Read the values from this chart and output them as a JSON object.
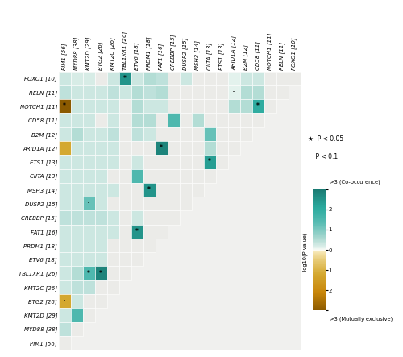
{
  "genes_row": [
    "FOXO1 [10]",
    "RELN [11]",
    "NOTCH1 [11]",
    "CD58 [11]",
    "B2M [12]",
    "ARID1A [12]",
    "ETS1 [13]",
    "CIITA [13]",
    "MSH3 [14]",
    "DUSP2 [15]",
    "CREBBP [15]",
    "FAT1 [16]",
    "PRDM1 [18]",
    "ETV6 [18]",
    "TBL1XR1 [26]",
    "KMT2C [26]",
    "BTG2 [26]",
    "KMT2D [29]",
    "MYD88 [38]",
    "PIM1 [56]"
  ],
  "genes_col": [
    "PIM1 [56]",
    "MYD88 [38]",
    "KMT2D [29]",
    "BTG2 [26]",
    "KMT2C [26]",
    "TBL1XR1 [26]",
    "ETV6 [18]",
    "PRDM1 [18]",
    "FAT1 [16]",
    "CREBBP [15]",
    "DUSP2 [15]",
    "MSH3 [14]",
    "CIITA [13]",
    "ETS1 [13]",
    "ARID1A [12]",
    "B2M [12]",
    "CD58 [11]",
    "NOTCH1 [11]",
    "RELN [11]",
    "FOXO1 [10]"
  ],
  "matrix": [
    [
      0.3,
      0.2,
      0.2,
      0.0,
      0.3,
      2.5,
      0.3,
      0.5,
      0.4,
      0.0,
      0.3,
      0.0,
      0.0,
      0.0,
      0.1,
      0.3,
      0.3,
      0.0,
      0.0,
      0.0
    ],
    [
      0.4,
      0.3,
      0.3,
      0.3,
      0.4,
      0.3,
      0.5,
      0.4,
      0.5,
      0.0,
      0.0,
      0.0,
      0.0,
      0.0,
      0.1,
      0.5,
      0.5,
      0.0,
      0.0,
      0.0
    ],
    [
      -3.5,
      0.3,
      0.3,
      0.3,
      0.3,
      0.0,
      0.5,
      0.3,
      0.3,
      0.0,
      0.0,
      0.0,
      0.0,
      0.0,
      0.5,
      0.5,
      2.0,
      0.0,
      0.0,
      0.0
    ],
    [
      0.3,
      0.3,
      0.3,
      0.0,
      0.3,
      0.0,
      0.5,
      0.5,
      0.0,
      1.5,
      0.0,
      0.5,
      0.0,
      0.0,
      0.0,
      0.0,
      0.0,
      0.0,
      0.0,
      0.0
    ],
    [
      0.3,
      0.5,
      0.3,
      0.3,
      0.4,
      0.0,
      0.4,
      0.3,
      0.0,
      0.0,
      0.0,
      0.0,
      1.2,
      0.0,
      0.0,
      0.0,
      0.0,
      0.0,
      0.0,
      0.0
    ],
    [
      -1.2,
      0.3,
      0.3,
      0.3,
      0.3,
      0.0,
      0.0,
      0.0,
      2.8,
      0.0,
      0.0,
      0.0,
      0.5,
      0.0,
      0.0,
      0.0,
      0.0,
      0.0,
      0.0,
      0.0
    ],
    [
      0.3,
      0.3,
      0.3,
      0.3,
      0.3,
      0.0,
      0.3,
      0.0,
      0.0,
      0.0,
      0.0,
      0.0,
      2.3,
      0.0,
      0.0,
      0.0,
      0.0,
      0.0,
      0.0,
      0.0
    ],
    [
      0.3,
      0.3,
      0.3,
      0.3,
      0.0,
      0.0,
      1.5,
      0.0,
      0.0,
      0.0,
      0.0,
      0.0,
      0.0,
      0.0,
      0.0,
      0.0,
      0.0,
      0.0,
      0.0,
      0.0
    ],
    [
      0.3,
      0.3,
      0.3,
      0.3,
      0.3,
      0.0,
      0.0,
      2.5,
      0.0,
      0.0,
      0.0,
      0.0,
      0.0,
      0.0,
      0.0,
      0.0,
      0.0,
      0.0,
      0.0,
      0.0
    ],
    [
      0.3,
      0.3,
      1.2,
      0.3,
      0.0,
      0.0,
      0.0,
      0.0,
      0.0,
      0.0,
      0.0,
      0.0,
      0.0,
      0.0,
      0.0,
      0.0,
      0.0,
      0.0,
      0.0,
      0.0
    ],
    [
      0.4,
      0.4,
      0.4,
      0.4,
      0.3,
      0.0,
      0.3,
      0.0,
      0.0,
      0.0,
      0.0,
      0.0,
      0.0,
      0.0,
      0.0,
      0.0,
      0.0,
      0.0,
      0.0,
      0.0
    ],
    [
      0.3,
      0.3,
      0.3,
      0.3,
      0.3,
      0.0,
      2.5,
      0.0,
      0.0,
      0.0,
      0.0,
      0.0,
      0.0,
      0.0,
      0.0,
      0.0,
      0.0,
      0.0,
      0.0,
      0.0
    ],
    [
      0.3,
      0.3,
      0.3,
      0.3,
      0.0,
      0.0,
      0.0,
      0.0,
      0.0,
      0.0,
      0.0,
      0.0,
      0.0,
      0.0,
      0.0,
      0.0,
      0.0,
      0.0,
      0.0,
      0.0
    ],
    [
      0.3,
      0.3,
      0.3,
      0.3,
      0.0,
      0.0,
      0.0,
      0.0,
      0.0,
      0.0,
      0.0,
      0.0,
      0.0,
      0.0,
      0.0,
      0.0,
      0.0,
      0.0,
      0.0,
      0.0
    ],
    [
      0.3,
      0.5,
      1.5,
      2.8,
      0.0,
      0.0,
      0.0,
      0.0,
      0.0,
      0.0,
      0.0,
      0.0,
      0.0,
      0.0,
      0.0,
      0.0,
      0.0,
      0.0,
      0.0,
      0.0
    ],
    [
      0.3,
      0.4,
      0.4,
      0.0,
      0.0,
      0.0,
      0.0,
      0.0,
      0.0,
      0.0,
      0.0,
      0.0,
      0.0,
      0.0,
      0.0,
      0.0,
      0.0,
      0.0,
      0.0,
      0.0
    ],
    [
      -1.2,
      0.3,
      0.0,
      0.0,
      0.0,
      0.0,
      0.0,
      0.0,
      0.0,
      0.0,
      0.0,
      0.0,
      0.0,
      0.0,
      0.0,
      0.0,
      0.0,
      0.0,
      0.0,
      0.0
    ],
    [
      0.3,
      1.5,
      0.0,
      0.0,
      0.0,
      0.0,
      0.0,
      0.0,
      0.0,
      0.0,
      0.0,
      0.0,
      0.0,
      0.0,
      0.0,
      0.0,
      0.0,
      0.0,
      0.0,
      0.0
    ],
    [
      0.4,
      0.0,
      0.0,
      0.0,
      0.0,
      0.0,
      0.0,
      0.0,
      0.0,
      0.0,
      0.0,
      0.0,
      0.0,
      0.0,
      0.0,
      0.0,
      0.0,
      0.0,
      0.0,
      0.0
    ],
    [
      0.0,
      0.0,
      0.0,
      0.0,
      0.0,
      0.0,
      0.0,
      0.0,
      0.0,
      0.0,
      0.0,
      0.0,
      0.0,
      0.0,
      0.0,
      0.0,
      0.0,
      0.0,
      0.0,
      0.0
    ]
  ],
  "significance": [
    [
      0,
      0,
      0,
      0,
      0,
      1,
      0,
      0,
      0,
      0,
      0,
      0,
      0,
      0,
      0,
      0,
      0,
      0,
      0,
      0
    ],
    [
      0,
      0,
      0,
      0,
      0,
      0,
      0,
      0,
      0,
      0,
      0,
      0,
      0,
      0,
      2,
      0,
      0,
      0,
      0,
      0
    ],
    [
      1,
      0,
      0,
      0,
      0,
      0,
      0,
      0,
      0,
      0,
      0,
      0,
      0,
      0,
      0,
      0,
      1,
      0,
      0,
      0
    ],
    [
      0,
      0,
      0,
      0,
      0,
      0,
      0,
      0,
      0,
      0,
      0,
      0,
      0,
      0,
      0,
      0,
      0,
      0,
      0,
      0
    ],
    [
      0,
      0,
      0,
      0,
      0,
      0,
      0,
      0,
      0,
      0,
      0,
      0,
      0,
      0,
      0,
      0,
      0,
      0,
      0,
      0
    ],
    [
      2,
      0,
      0,
      0,
      0,
      0,
      0,
      0,
      1,
      0,
      0,
      0,
      0,
      0,
      0,
      0,
      0,
      0,
      0,
      0
    ],
    [
      0,
      0,
      0,
      0,
      0,
      0,
      0,
      0,
      0,
      0,
      0,
      0,
      1,
      0,
      0,
      0,
      0,
      0,
      0,
      0
    ],
    [
      0,
      0,
      0,
      0,
      0,
      0,
      0,
      0,
      0,
      0,
      0,
      0,
      0,
      0,
      0,
      0,
      0,
      0,
      0,
      0
    ],
    [
      0,
      0,
      0,
      0,
      0,
      0,
      0,
      1,
      0,
      0,
      0,
      0,
      0,
      0,
      0,
      0,
      0,
      0,
      0,
      0
    ],
    [
      0,
      0,
      2,
      0,
      0,
      0,
      0,
      0,
      0,
      0,
      0,
      0,
      0,
      0,
      0,
      0,
      0,
      0,
      0,
      0
    ],
    [
      0,
      0,
      0,
      0,
      0,
      0,
      0,
      0,
      0,
      0,
      0,
      0,
      0,
      0,
      0,
      0,
      0,
      0,
      0,
      0
    ],
    [
      0,
      0,
      0,
      0,
      0,
      0,
      1,
      0,
      0,
      0,
      0,
      0,
      0,
      0,
      0,
      0,
      0,
      0,
      0,
      0
    ],
    [
      0,
      0,
      0,
      0,
      0,
      0,
      0,
      0,
      0,
      0,
      0,
      0,
      0,
      0,
      0,
      0,
      0,
      0,
      0,
      0
    ],
    [
      0,
      0,
      0,
      0,
      0,
      0,
      0,
      0,
      0,
      0,
      0,
      0,
      0,
      0,
      0,
      0,
      0,
      0,
      0,
      0
    ],
    [
      0,
      0,
      1,
      1,
      0,
      0,
      0,
      0,
      0,
      0,
      0,
      0,
      0,
      0,
      0,
      0,
      0,
      0,
      0,
      0
    ],
    [
      0,
      0,
      0,
      0,
      0,
      0,
      0,
      0,
      0,
      0,
      0,
      0,
      0,
      0,
      0,
      0,
      0,
      0,
      0,
      0
    ],
    [
      2,
      0,
      0,
      0,
      0,
      0,
      0,
      0,
      0,
      0,
      0,
      0,
      0,
      0,
      0,
      0,
      0,
      0,
      0,
      0
    ],
    [
      0,
      0,
      0,
      0,
      0,
      0,
      0,
      0,
      0,
      0,
      0,
      0,
      0,
      0,
      0,
      0,
      0,
      0,
      0,
      0
    ],
    [
      0,
      0,
      0,
      0,
      0,
      0,
      0,
      0,
      0,
      0,
      0,
      0,
      0,
      0,
      0,
      0,
      0,
      0,
      0,
      0
    ],
    [
      0,
      0,
      0,
      0,
      0,
      0,
      0,
      0,
      0,
      0,
      0,
      0,
      0,
      0,
      0,
      0,
      0,
      0,
      0,
      0
    ]
  ],
  "tick_fontsize": 5.0,
  "cmap_colors": [
    [
      0.0,
      "#8b5a00"
    ],
    [
      0.15,
      "#c8860a"
    ],
    [
      0.3,
      "#d4a830"
    ],
    [
      0.42,
      "#e8cc7a"
    ],
    [
      0.48,
      "#f5e5b0"
    ],
    [
      0.5,
      "#fdfdf8"
    ],
    [
      0.52,
      "#e0f0eb"
    ],
    [
      0.6,
      "#a8d8d0"
    ],
    [
      0.72,
      "#5abdb4"
    ],
    [
      0.85,
      "#2aaa9e"
    ],
    [
      1.0,
      "#1a7a72"
    ]
  ],
  "vmin": -3,
  "vmax": 3,
  "cb_ticks": [
    -3,
    -2,
    -1,
    0,
    1,
    2,
    3
  ],
  "cb_ticklabels": [
    "",
    "2",
    "1",
    "0",
    "1",
    "2",
    ""
  ],
  "cb_top_label": ">3 (Co-occurence)",
  "cb_bot_label": ">3 (Mutually exclusive)",
  "cb_side_label": "-log10(P-value)",
  "legend_star": "★  P < 0.05",
  "legend_dot": "·  P < 0.1"
}
